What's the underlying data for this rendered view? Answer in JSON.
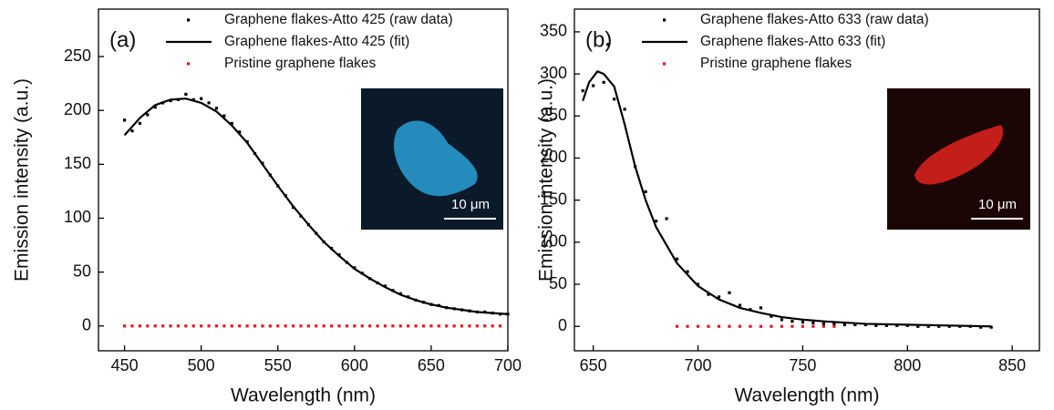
{
  "chart_data": [
    {
      "type": "line",
      "panel_label": "(a)",
      "x_label": "Wavelength (nm)",
      "y_label": "Emission intensity (a.u.)",
      "xlim": [
        433,
        700
      ],
      "ylim": [
        -23,
        294
      ],
      "xticks": [
        450,
        500,
        550,
        600,
        650,
        700
      ],
      "yticks": [
        0,
        50,
        100,
        150,
        200,
        250
      ],
      "legend": "top-right",
      "inset_label": "10 μm",
      "inset_color": "#2a9fd6",
      "series": [
        {
          "name": "Graphene flakes-Atto 425 (raw data)",
          "style": "scatter",
          "color": "#000000",
          "x": [
            450,
            455,
            460,
            465,
            470,
            475,
            480,
            485,
            490,
            495,
            500,
            505,
            510,
            515,
            520,
            525,
            530,
            535,
            540,
            545,
            550,
            555,
            560,
            565,
            570,
            575,
            580,
            585,
            590,
            595,
            600,
            605,
            610,
            615,
            620,
            625,
            630,
            635,
            640,
            645,
            650,
            655,
            660,
            665,
            670,
            675,
            680,
            685,
            690,
            695,
            700
          ],
          "values": [
            191,
            181,
            188,
            196,
            203,
            207,
            209,
            210,
            215,
            210,
            211,
            207,
            202,
            195,
            188,
            180,
            171,
            160,
            151,
            140,
            130,
            121,
            110,
            102,
            94,
            86,
            78,
            72,
            66,
            59,
            54,
            49,
            44,
            40,
            37,
            33,
            30,
            27,
            24,
            22,
            20,
            19,
            17,
            16,
            15,
            14,
            13,
            13,
            12,
            11,
            11
          ]
        },
        {
          "name": "Graphene flakes-Atto 425 (fit)",
          "style": "line",
          "color": "#000000",
          "x": [
            450,
            460,
            470,
            480,
            490,
            500,
            510,
            520,
            530,
            540,
            550,
            560,
            570,
            580,
            590,
            600,
            610,
            620,
            630,
            640,
            650,
            660,
            670,
            680,
            690,
            700
          ],
          "values": [
            177,
            193,
            205,
            210,
            211,
            207,
            199,
            186,
            170,
            150,
            130,
            111,
            94,
            78,
            65,
            53,
            44,
            36,
            29,
            24,
            20,
            17,
            15,
            13,
            12,
            11
          ]
        },
        {
          "name": "Pristine graphene flakes",
          "style": "scatter",
          "color": "#e8141c",
          "x": [
            450,
            455,
            460,
            465,
            470,
            475,
            480,
            485,
            490,
            495,
            500,
            505,
            510,
            515,
            520,
            525,
            530,
            535,
            540,
            545,
            550,
            555,
            560,
            565,
            570,
            575,
            580,
            585,
            590,
            595,
            600,
            605,
            610,
            615,
            620,
            625,
            630,
            635,
            640,
            645,
            650,
            655,
            660,
            665,
            670,
            675,
            680,
            685,
            690,
            695
          ],
          "values": [
            0,
            0,
            0,
            0,
            0,
            0,
            0,
            0,
            0,
            0,
            0,
            0,
            0,
            0,
            0,
            0,
            0,
            0,
            0,
            0,
            0,
            0,
            0,
            0,
            0,
            0,
            0,
            0,
            0,
            0,
            0,
            0,
            0,
            0,
            0,
            0,
            0,
            0,
            0,
            0,
            0,
            0,
            0,
            0,
            0,
            0,
            0,
            0,
            0,
            0
          ]
        }
      ]
    },
    {
      "type": "line",
      "panel_label": "(b)",
      "x_label": "Wavelength (nm)",
      "y_label": "Emission intensity (a.u.)",
      "xlim": [
        641,
        863
      ],
      "ylim": [
        -29,
        377
      ],
      "xticks": [
        650,
        700,
        750,
        800,
        850
      ],
      "yticks": [
        0,
        50,
        100,
        150,
        200,
        250,
        300,
        350
      ],
      "legend": "top-right",
      "inset_label": "10 μm",
      "inset_color": "#e0231e",
      "series": [
        {
          "name": "Graphene flakes-Atto 633 (raw data)",
          "style": "scatter",
          "color": "#000000",
          "x": [
            645,
            650,
            655,
            657,
            660,
            665,
            670,
            675,
            680,
            685,
            690,
            695,
            700,
            705,
            710,
            715,
            720,
            725,
            730,
            735,
            740,
            745,
            750,
            755,
            760,
            765,
            770,
            775,
            780,
            785,
            790,
            795,
            800,
            805,
            810,
            815,
            820,
            825,
            830,
            835,
            840
          ],
          "values": [
            280,
            286,
            290,
            335,
            270,
            258,
            190,
            160,
            125,
            128,
            80,
            65,
            50,
            38,
            35,
            40,
            25,
            20,
            22,
            12,
            8,
            6,
            5,
            4,
            3,
            3,
            2,
            2,
            2,
            1,
            1,
            1,
            1,
            0,
            0,
            0,
            0,
            0,
            0,
            -1,
            -1
          ]
        },
        {
          "name": "Graphene flakes-Atto 633 (fit)",
          "style": "line",
          "color": "#000000",
          "x": [
            645,
            648,
            652,
            655,
            660,
            665,
            670,
            675,
            680,
            690,
            700,
            710,
            720,
            730,
            740,
            750,
            760,
            780,
            800,
            820,
            840
          ],
          "values": [
            268,
            290,
            303,
            300,
            285,
            240,
            190,
            150,
            118,
            75,
            48,
            32,
            22,
            16,
            11,
            8,
            6,
            3,
            2,
            1,
            0
          ]
        },
        {
          "name": "Pristine graphene flakes",
          "style": "scatter",
          "color": "#e8141c",
          "x": [
            690,
            695,
            700,
            705,
            710,
            715,
            720,
            725,
            730,
            735,
            740,
            745,
            750,
            755,
            760,
            765
          ],
          "values": [
            0,
            0,
            0,
            0,
            0,
            0,
            0,
            0,
            0,
            0,
            0,
            0,
            0,
            0,
            0,
            0
          ]
        }
      ]
    }
  ]
}
